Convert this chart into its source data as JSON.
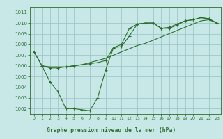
{
  "title": "Graphe pression niveau de la mer (hPa)",
  "bg_color": "#c8e8e8",
  "grid_color": "#a0c8c8",
  "line_color": "#2d6e2d",
  "xlim": [
    -0.5,
    23.5
  ],
  "ylim": [
    1001.5,
    1011.5
  ],
  "yticks": [
    1002,
    1003,
    1004,
    1005,
    1006,
    1007,
    1008,
    1009,
    1010,
    1011
  ],
  "xticks": [
    0,
    1,
    2,
    3,
    4,
    5,
    6,
    7,
    8,
    9,
    10,
    11,
    12,
    13,
    14,
    15,
    16,
    17,
    18,
    19,
    20,
    21,
    22,
    23
  ],
  "series1_x": [
    0,
    1,
    2,
    3,
    4,
    5,
    6,
    7,
    8,
    9,
    10,
    11,
    12,
    13,
    14,
    15,
    16,
    17,
    18,
    19,
    20,
    21,
    22,
    23
  ],
  "series1_y": [
    1007.3,
    1006.0,
    1004.5,
    1003.6,
    1002.0,
    1002.0,
    1001.9,
    1001.8,
    1003.0,
    1005.6,
    1007.7,
    1008.0,
    1009.5,
    1009.9,
    1010.0,
    1010.0,
    1009.5,
    1009.5,
    1009.8,
    1010.2,
    1010.3,
    1010.5,
    1010.4,
    1010.0
  ],
  "series2_x": [
    0,
    1,
    2,
    3,
    4,
    5,
    6,
    7,
    8,
    9,
    10,
    11,
    12,
    13,
    14,
    15,
    16,
    17,
    18,
    19,
    20,
    21,
    22,
    23
  ],
  "series2_y": [
    1007.3,
    1006.0,
    1005.9,
    1005.9,
    1005.9,
    1006.0,
    1006.1,
    1006.3,
    1006.5,
    1006.7,
    1007.0,
    1007.3,
    1007.6,
    1007.9,
    1008.1,
    1008.4,
    1008.7,
    1009.0,
    1009.3,
    1009.6,
    1009.9,
    1010.2,
    1010.3,
    1010.0
  ],
  "series3_x": [
    1,
    2,
    3,
    4,
    5,
    6,
    7,
    8,
    9,
    10,
    11,
    12,
    13,
    14,
    15,
    16,
    17,
    18,
    19,
    20,
    21,
    22,
    23
  ],
  "series3_y": [
    1006.0,
    1005.8,
    1005.8,
    1005.9,
    1006.0,
    1006.1,
    1006.2,
    1006.3,
    1006.5,
    1007.7,
    1007.8,
    1008.8,
    1009.9,
    1010.0,
    1010.0,
    1009.5,
    1009.6,
    1009.9,
    1010.2,
    1010.3,
    1010.5,
    1010.4,
    1010.0
  ]
}
